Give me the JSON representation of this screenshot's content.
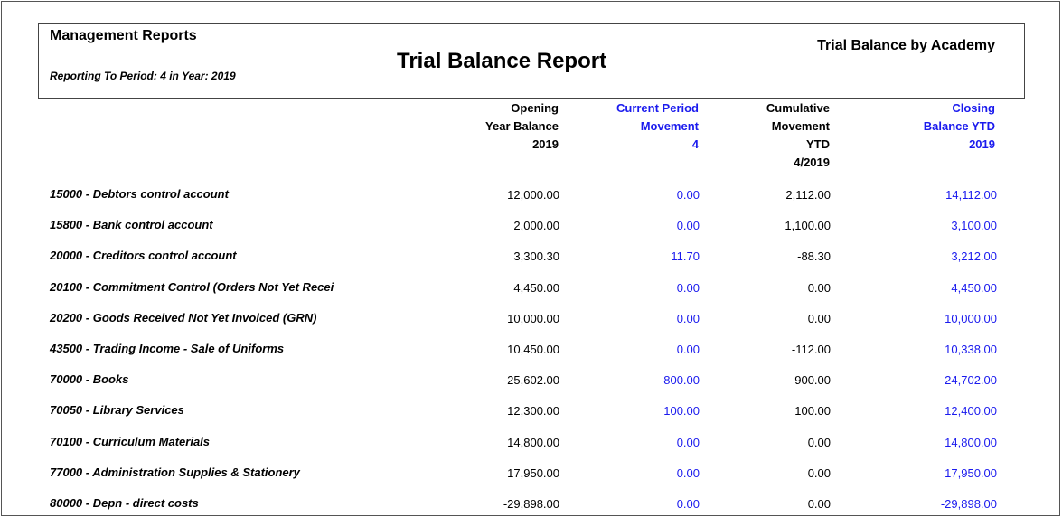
{
  "header": {
    "left_title": "Management Reports",
    "period_label": "Reporting To Period: 4  in Year:",
    "year": "2019",
    "center_title": "Trial Balance Report",
    "right_title": "Trial Balance by Academy"
  },
  "columns": [
    {
      "lines": [
        "Opening",
        "Year Balance",
        "2019"
      ],
      "color": "#000000"
    },
    {
      "lines": [
        "Current Period",
        "Movement",
        "4"
      ],
      "color": "#1a1aee"
    },
    {
      "lines": [
        "Cumulative",
        "Movement",
        "YTD",
        "4/2019"
      ],
      "color": "#000000"
    },
    {
      "lines": [
        "Closing",
        "Balance YTD",
        "2019"
      ],
      "color": "#1a1aee"
    }
  ],
  "rows": [
    {
      "account": "15000 - Debtors control account",
      "opening": "12,000.00",
      "current": "0.00",
      "cumulative": "2,112.00",
      "closing": "14,112.00"
    },
    {
      "account": "15800 - Bank control account",
      "opening": "2,000.00",
      "current": "0.00",
      "cumulative": "1,100.00",
      "closing": "3,100.00"
    },
    {
      "account": "20000 - Creditors control account",
      "opening": "3,300.30",
      "current": "11.70",
      "cumulative": "-88.30",
      "closing": "3,212.00"
    },
    {
      "account": "20100 - Commitment Control (Orders Not Yet Recei",
      "opening": "4,450.00",
      "current": "0.00",
      "cumulative": "0.00",
      "closing": "4,450.00"
    },
    {
      "account": "20200 - Goods Received Not Yet Invoiced (GRN)",
      "opening": "10,000.00",
      "current": "0.00",
      "cumulative": "0.00",
      "closing": "10,000.00"
    },
    {
      "account": "43500 - Trading Income - Sale of Uniforms",
      "opening": "10,450.00",
      "current": "0.00",
      "cumulative": "-112.00",
      "closing": "10,338.00"
    },
    {
      "account": "70000 - Books",
      "opening": "-25,602.00",
      "current": "800.00",
      "cumulative": "900.00",
      "closing": "-24,702.00"
    },
    {
      "account": "70050 - Library Services",
      "opening": "12,300.00",
      "current": "100.00",
      "cumulative": "100.00",
      "closing": "12,400.00"
    },
    {
      "account": "70100 - Curriculum Materials",
      "opening": "14,800.00",
      "current": "0.00",
      "cumulative": "0.00",
      "closing": "14,800.00"
    },
    {
      "account": "77000 - Administration Supplies & Stationery",
      "opening": "17,950.00",
      "current": "0.00",
      "cumulative": "0.00",
      "closing": "17,950.00"
    },
    {
      "account": "80000 - Depn - direct costs",
      "opening": "-29,898.00",
      "current": "0.00",
      "cumulative": "0.00",
      "closing": "-29,898.00"
    }
  ]
}
